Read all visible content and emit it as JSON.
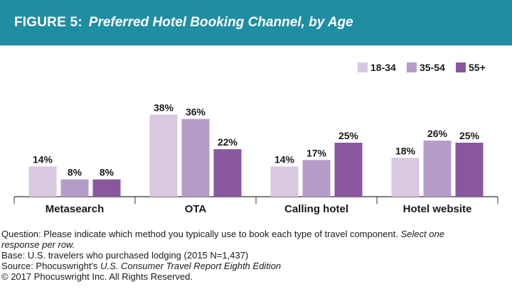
{
  "header": {
    "figure_label": "FIGURE 5:",
    "figure_title": "Preferred Hotel Booking Channel, by Age",
    "background": "#1f8ea3"
  },
  "chart_data": {
    "type": "bar",
    "title": "Preferred Hotel Booking Channel, by Age",
    "categories": [
      "Metasearch",
      "OTA",
      "Calling hotel",
      "Hotel website"
    ],
    "series": [
      {
        "name": "18-34",
        "color": "#d8c8e0",
        "values": [
          14,
          38,
          14,
          18
        ]
      },
      {
        "name": "35-54",
        "color": "#b59cc9",
        "values": [
          8,
          36,
          17,
          26
        ]
      },
      {
        "name": "55+",
        "color": "#8a56a0",
        "values": [
          8,
          22,
          25,
          25
        ]
      }
    ],
    "value_suffix": "%",
    "ylim": [
      0,
      40
    ],
    "grid": false,
    "legend_position": "top-right",
    "xlabel": "",
    "ylabel": ""
  },
  "notes": {
    "question_prefix": "Question: Please indicate which method you typically use to book each type of travel component.",
    "question_italic_1": "Select one",
    "question_italic_2": "response per row.",
    "base": "Base: U.S. travelers who purchased lodging (2015 N=1,437)",
    "source_prefix": "Source: Phocuswright's",
    "source_italic": "U.S. Consumer Travel Report Eighth Edition",
    "copyright": "© 2017 Phocuswright Inc. All Rights Reserved."
  }
}
